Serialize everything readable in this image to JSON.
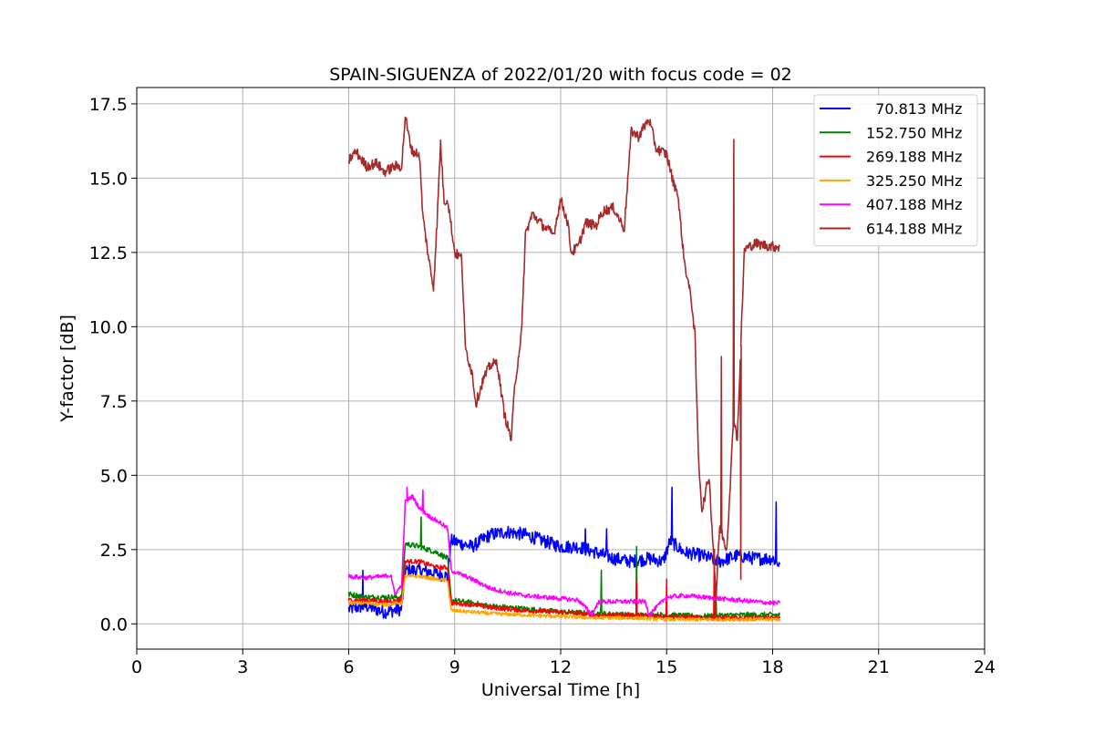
{
  "chart_data": {
    "type": "line",
    "title": "SPAIN-SIGUENZA of 2022/01/20 with focus code = 02",
    "xlabel": "Universal Time [h]",
    "ylabel": "Y-factor [dB]",
    "xlim": [
      0,
      24
    ],
    "ylim": [
      -0.85,
      18.05
    ],
    "x_ticks": [
      0,
      3,
      6,
      9,
      12,
      15,
      18,
      21,
      24
    ],
    "x_tick_labels": [
      "0",
      "3",
      "6",
      "9",
      "12",
      "15",
      "18",
      "21",
      "24"
    ],
    "y_ticks": [
      0,
      2.5,
      5,
      7.5,
      10,
      12.5,
      15,
      17.5
    ],
    "y_tick_labels": [
      "0.0",
      "2.5",
      "5.0",
      "7.5",
      "10.0",
      "12.5",
      "15.0",
      "17.5"
    ],
    "grid": true,
    "legend_position": "top-right",
    "series": [
      {
        "name": "  70.813 MHz",
        "color": "#0000ff",
        "x": [
          6.0,
          6.5,
          7.0,
          7.5,
          7.6,
          8.0,
          8.5,
          8.8,
          8.9,
          9.5,
          10.0,
          10.5,
          11.0,
          11.5,
          12.0,
          12.5,
          13.0,
          13.5,
          14.0,
          14.5,
          14.9,
          15.1,
          15.5,
          16.0,
          16.5,
          17.0,
          17.5,
          18.0,
          18.2
        ],
        "y": [
          0.5,
          0.6,
          0.4,
          0.5,
          1.8,
          1.8,
          1.7,
          1.6,
          2.8,
          2.6,
          3.0,
          3.1,
          3.0,
          2.8,
          2.6,
          2.6,
          2.4,
          2.2,
          2.1,
          2.2,
          2.1,
          2.8,
          2.4,
          2.3,
          2.1,
          2.3,
          2.2,
          2.2,
          2.0
        ],
        "spikes": [
          [
            6.4,
            1.8
          ],
          [
            15.15,
            4.6
          ],
          [
            18.1,
            4.1
          ],
          [
            13.3,
            3.2
          ],
          [
            12.7,
            3.2
          ]
        ]
      },
      {
        "name": "152.750 MHz",
        "color": "#008000",
        "x": [
          6.0,
          6.5,
          7.0,
          7.5,
          7.6,
          8.0,
          8.5,
          8.8,
          8.9,
          9.5,
          10.0,
          11.0,
          12.0,
          13.0,
          14.0,
          15.0,
          16.0,
          17.0,
          18.0,
          18.2
        ],
        "y": [
          1.0,
          0.9,
          0.9,
          0.9,
          2.7,
          2.6,
          2.4,
          2.2,
          0.8,
          0.7,
          0.6,
          0.5,
          0.4,
          0.35,
          0.3,
          0.3,
          0.25,
          0.3,
          0.3,
          0.3
        ],
        "spikes": [
          [
            8.05,
            3.6
          ],
          [
            13.15,
            1.8
          ],
          [
            14.15,
            2.6
          ],
          [
            16.4,
            0.9
          ]
        ]
      },
      {
        "name": "269.188 MHz",
        "color": "#ff0000",
        "x": [
          6.0,
          6.5,
          7.0,
          7.5,
          7.6,
          8.0,
          8.5,
          8.8,
          8.9,
          9.5,
          10.0,
          11.0,
          12.0,
          13.0,
          14.0,
          15.0,
          16.0,
          17.0,
          18.0,
          18.2
        ],
        "y": [
          0.8,
          0.8,
          0.75,
          0.8,
          2.1,
          2.1,
          1.9,
          1.9,
          0.7,
          0.65,
          0.55,
          0.45,
          0.4,
          0.3,
          0.3,
          0.25,
          0.2,
          0.2,
          0.2,
          0.2
        ],
        "spikes": [
          [
            14.15,
            1.4
          ],
          [
            15.0,
            1.5
          ],
          [
            16.35,
            2.5
          ]
        ]
      },
      {
        "name": "325.250 MHz",
        "color": "#ffa500",
        "x": [
          6.0,
          6.5,
          7.0,
          7.5,
          7.6,
          8.0,
          8.5,
          8.8,
          8.9,
          9.5,
          10.0,
          11.0,
          12.0,
          13.0,
          14.0,
          15.0,
          16.0,
          17.0,
          18.0,
          18.2
        ],
        "y": [
          0.7,
          0.7,
          0.65,
          0.7,
          1.6,
          1.6,
          1.5,
          1.45,
          0.45,
          0.4,
          0.35,
          0.3,
          0.25,
          0.2,
          0.2,
          0.15,
          0.15,
          0.15,
          0.15,
          0.15
        ],
        "spikes": []
      },
      {
        "name": "407.188 MHz",
        "color": "#ff00ff",
        "x": [
          6.0,
          6.5,
          7.0,
          7.2,
          7.3,
          7.5,
          7.6,
          7.8,
          8.0,
          8.3,
          8.6,
          8.8,
          8.9,
          9.5,
          10.0,
          10.5,
          11.0,
          11.5,
          12.0,
          12.5,
          12.9,
          13.0,
          13.1,
          13.5,
          14.0,
          14.4,
          14.5,
          15.0,
          15.5,
          16.0,
          16.5,
          17.0,
          17.5,
          18.0,
          18.2
        ],
        "y": [
          1.6,
          1.55,
          1.6,
          1.65,
          1.0,
          1.3,
          4.1,
          4.3,
          3.9,
          3.6,
          3.4,
          3.2,
          1.8,
          1.5,
          1.2,
          1.05,
          0.95,
          0.9,
          0.85,
          0.8,
          0.3,
          0.6,
          0.75,
          0.75,
          0.75,
          0.75,
          0.3,
          0.9,
          0.95,
          0.9,
          0.85,
          0.8,
          0.75,
          0.7,
          0.7
        ],
        "spikes": [
          [
            7.65,
            4.6
          ],
          [
            8.1,
            4.5
          ]
        ]
      },
      {
        "name": "614.188 MHz",
        "color": "#a52a2a",
        "x": [
          6.0,
          6.2,
          6.5,
          6.8,
          7.0,
          7.3,
          7.5,
          7.6,
          7.7,
          7.8,
          8.0,
          8.1,
          8.3,
          8.4,
          8.5,
          8.6,
          8.7,
          8.8,
          9.0,
          9.2,
          9.3,
          9.5,
          9.6,
          9.8,
          10.0,
          10.2,
          10.4,
          10.6,
          10.7,
          10.9,
          11.0,
          11.2,
          11.5,
          11.8,
          12.0,
          12.2,
          12.3,
          12.5,
          12.7,
          13.0,
          13.2,
          13.5,
          13.8,
          14.0,
          14.2,
          14.5,
          14.7,
          15.0,
          15.2,
          15.3,
          15.5,
          15.7,
          15.8,
          15.9,
          16.0,
          16.2,
          16.4,
          16.5,
          16.7,
          16.9,
          17.0,
          17.2,
          17.5,
          18.0,
          18.2
        ],
        "y": [
          15.6,
          15.9,
          15.4,
          15.5,
          15.2,
          15.4,
          15.4,
          17.1,
          16.4,
          15.9,
          15.8,
          13.7,
          12.0,
          11.3,
          13.5,
          16.2,
          14.2,
          14.3,
          12.5,
          12.3,
          9.3,
          8.4,
          7.4,
          8.2,
          8.7,
          8.8,
          7.1,
          6.2,
          8.0,
          9.9,
          13.1,
          13.8,
          13.4,
          13.1,
          14.3,
          13.5,
          12.5,
          12.7,
          13.5,
          13.4,
          13.9,
          14.0,
          13.3,
          16.6,
          16.4,
          17.0,
          16.0,
          15.8,
          14.8,
          14.6,
          12.2,
          10.9,
          9.7,
          5.6,
          3.8,
          5.0,
          0.9,
          3.3,
          2.5,
          7.0,
          6.2,
          12.6,
          12.8,
          12.7,
          12.7
        ],
        "spikes": [
          [
            16.9,
            16.3
          ],
          [
            16.55,
            9.0
          ],
          [
            17.1,
            1.5
          ]
        ]
      }
    ]
  }
}
